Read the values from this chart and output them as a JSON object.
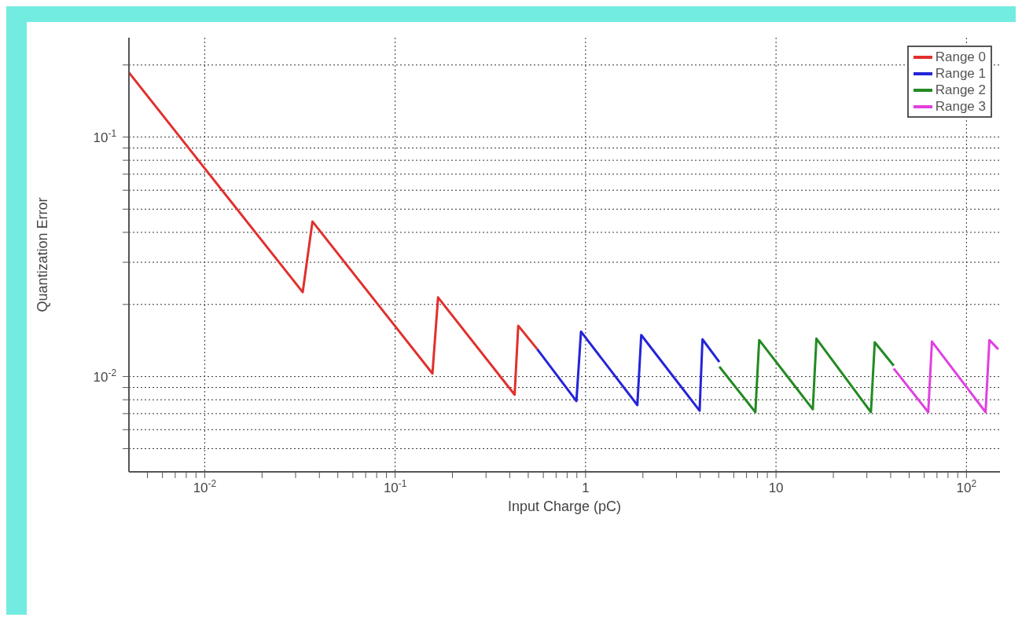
{
  "chart_data": {
    "type": "line",
    "xlabel": "Input Charge (pC)",
    "ylabel": "Quantization Error",
    "log": "xy",
    "grid": true,
    "legend": "top right",
    "line_style": "solid",
    "marker": "none",
    "xlim": [
      0.004,
      150
    ],
    "ylim": [
      0.004,
      0.26
    ],
    "xticks": [
      {
        "value": 0.005,
        "label": null
      },
      {
        "value": 0.006,
        "label": null
      },
      {
        "value": 0.007,
        "label": null
      },
      {
        "value": 0.008,
        "label": null
      },
      {
        "value": 0.009,
        "label": null
      },
      {
        "value": 0.01,
        "label": "10$^{-2}$"
      },
      {
        "value": 0.02,
        "label": null
      },
      {
        "value": 0.03,
        "label": null
      },
      {
        "value": 0.04,
        "label": null
      },
      {
        "value": 0.05,
        "label": null
      },
      {
        "value": 0.06,
        "label": null
      },
      {
        "value": 0.07,
        "label": null
      },
      {
        "value": 0.08,
        "label": null
      },
      {
        "value": 0.09,
        "label": null
      },
      {
        "value": 0.1,
        "label": "10$^{-1}$"
      },
      {
        "value": 0.2,
        "label": null
      },
      {
        "value": 0.3,
        "label": null
      },
      {
        "value": 0.4,
        "label": null
      },
      {
        "value": 0.5,
        "label": null
      },
      {
        "value": 0.6,
        "label": null
      },
      {
        "value": 0.7,
        "label": null
      },
      {
        "value": 0.8,
        "label": null
      },
      {
        "value": 0.9,
        "label": null
      },
      1,
      {
        "value": 2,
        "label": null
      },
      {
        "value": 3,
        "label": null
      },
      {
        "value": 4,
        "label": null
      },
      {
        "value": 5,
        "label": null
      },
      {
        "value": 6,
        "label": null
      },
      {
        "value": 7,
        "label": null
      },
      {
        "value": 8,
        "label": null
      },
      {
        "value": 9,
        "label": null
      },
      10,
      {
        "value": 20,
        "label": null
      },
      {
        "value": 30,
        "label": null
      },
      {
        "value": 40,
        "label": null
      },
      {
        "value": 50,
        "label": null
      },
      {
        "value": 60,
        "label": null
      },
      {
        "value": 70,
        "label": null
      },
      {
        "value": 80,
        "label": null
      },
      {
        "value": 90,
        "label": null
      },
      {
        "value": 100,
        "label": "10$^{2}$"
      }
    ],
    "yticks": [
      {
        "value": 0.005,
        "label": null
      },
      {
        "value": 0.006,
        "label": null
      },
      {
        "value": 0.007,
        "label": null
      },
      {
        "value": 0.008,
        "label": null
      },
      {
        "value": 0.009,
        "label": null
      },
      {
        "value": 0.01,
        "label": "10$^{-2}$"
      },
      {
        "value": 0.02,
        "label": null
      },
      {
        "value": 0.03,
        "label": null
      },
      {
        "value": 0.04,
        "label": null
      },
      {
        "value": 0.05,
        "label": null
      },
      {
        "value": 0.06,
        "label": null
      },
      {
        "value": 0.07,
        "label": null
      },
      {
        "value": 0.08,
        "label": null
      },
      {
        "value": 0.09,
        "label": null
      },
      {
        "value": 0.1,
        "label": "10$^{-1}$"
      },
      {
        "value": 0.2,
        "label": null
      }
    ],
    "series": [
      {
        "name": "Range 0",
        "color": "#e0302c",
        "x": [
          0.004,
          0.0327,
          0.0368,
          0.157,
          0.168,
          0.424,
          0.443,
          0.558
        ],
        "values": [
          0.186,
          0.0225,
          0.0444,
          0.0103,
          0.0214,
          0.0084,
          0.0163,
          0.013
        ]
      },
      {
        "name": "Range 1",
        "color": "#2424d8",
        "x": [
          0.558,
          0.895,
          0.946,
          1.87,
          1.96,
          3.97,
          4.11,
          5.04
        ],
        "values": [
          0.013,
          0.0079,
          0.0154,
          0.0076,
          0.0149,
          0.0072,
          0.0143,
          0.0115
        ]
      },
      {
        "name": "Range 2",
        "color": "#238a23",
        "x": [
          5.04,
          7.79,
          8.16,
          15.6,
          16.3,
          31.5,
          33,
          41.5
        ],
        "values": [
          0.011,
          0.0071,
          0.0142,
          0.0073,
          0.0144,
          0.0071,
          0.0139,
          0.0111
        ]
      },
      {
        "name": "Range 3",
        "color": "#e040e0",
        "x": [
          41.5,
          63,
          65.9,
          126,
          132,
          147
        ],
        "values": [
          0.0108,
          0.0071,
          0.014,
          0.0071,
          0.0142,
          0.013
        ]
      }
    ]
  }
}
